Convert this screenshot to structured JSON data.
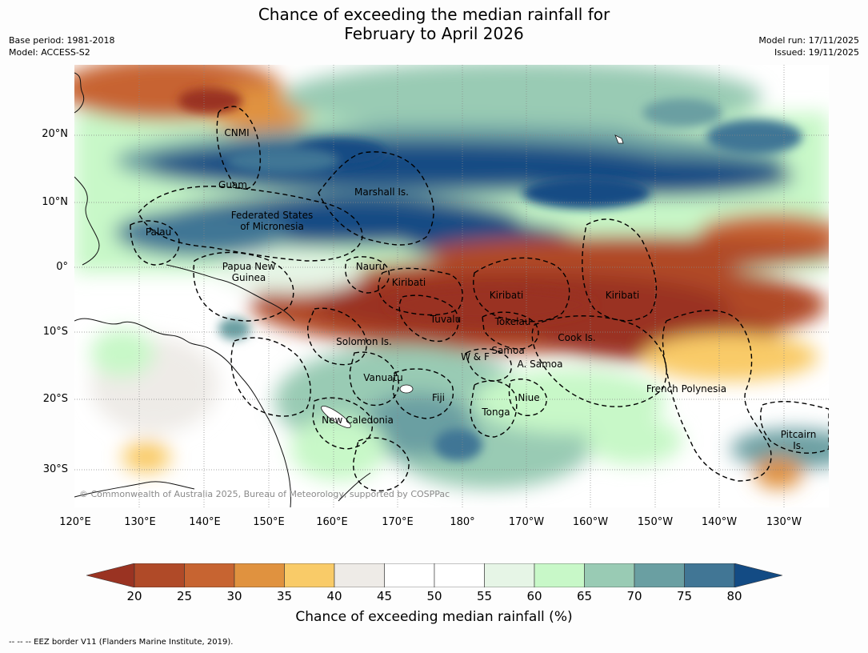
{
  "title": {
    "line1": "Chance of exceeding the median rainfall for",
    "line2": "February to April 2026"
  },
  "meta": {
    "base_period": "Base period: 1981-2018",
    "model": "Model: ACCESS-S2",
    "model_run": "Model run: 17/11/2025",
    "issued": "Issued: 19/11/2025"
  },
  "axes": {
    "lat_ticks": [
      "20°N",
      "10°N",
      "0°",
      "10°S",
      "20°S",
      "30°S"
    ],
    "lon_ticks": [
      "120°E",
      "130°E",
      "140°E",
      "150°E",
      "160°E",
      "170°E",
      "180°",
      "170°W",
      "160°W",
      "150°W",
      "140°W",
      "130°W"
    ]
  },
  "places": {
    "cnmi": "CNMI",
    "guam": "Guam",
    "marshall": "Marshall Is.",
    "fsm_line1": "Federated States",
    "fsm_line2": "of Micronesia",
    "palau": "Palau",
    "png_line1": "Papua New",
    "png_line2": "Guinea",
    "nauru": "Nauru",
    "kiribati_w": "Kiribati",
    "kiribati_c": "Kiribati",
    "kiribati_e": "Kiribati",
    "tuvalu": "Tuvalu",
    "tokelau": "Tokelau",
    "cook": "Cook Is.",
    "solomon": "Solomon Is.",
    "samoa": "Samoa",
    "wf": "W & F",
    "asamoa": "A. Samoa",
    "vanuatu": "Vanuatu",
    "fiji": "Fiji",
    "niue": "Niue",
    "tonga": "Tonga",
    "french_polynesia": "French Polynesia",
    "new_caledonia": "New Caledonia",
    "pitcairn_line1": "Pitcairn",
    "pitcairn_line2": "Is."
  },
  "copyright": "© Commonwealth of Australia 2025, Bureau of Meteorology, supported by COSPPac",
  "colorbar": {
    "label": "Chance of exceeding median rainfall (%)",
    "ticks": [
      "20",
      "25",
      "30",
      "35",
      "40",
      "45",
      "50",
      "55",
      "60",
      "65",
      "70",
      "75",
      "80"
    ],
    "colors": [
      "#9a3322",
      "#b04a28",
      "#c76431",
      "#e0923f",
      "#f9cb68",
      "#eeebe7",
      "#ffffff",
      "#ffffff",
      "#e6f5e6",
      "#c8f8c8",
      "#99cbb4",
      "#6a9fa2",
      "#417695",
      "#134b84"
    ]
  },
  "footnote": "--  --  -- EEZ border V11 (Flanders Marine Institute, 2019)."
}
